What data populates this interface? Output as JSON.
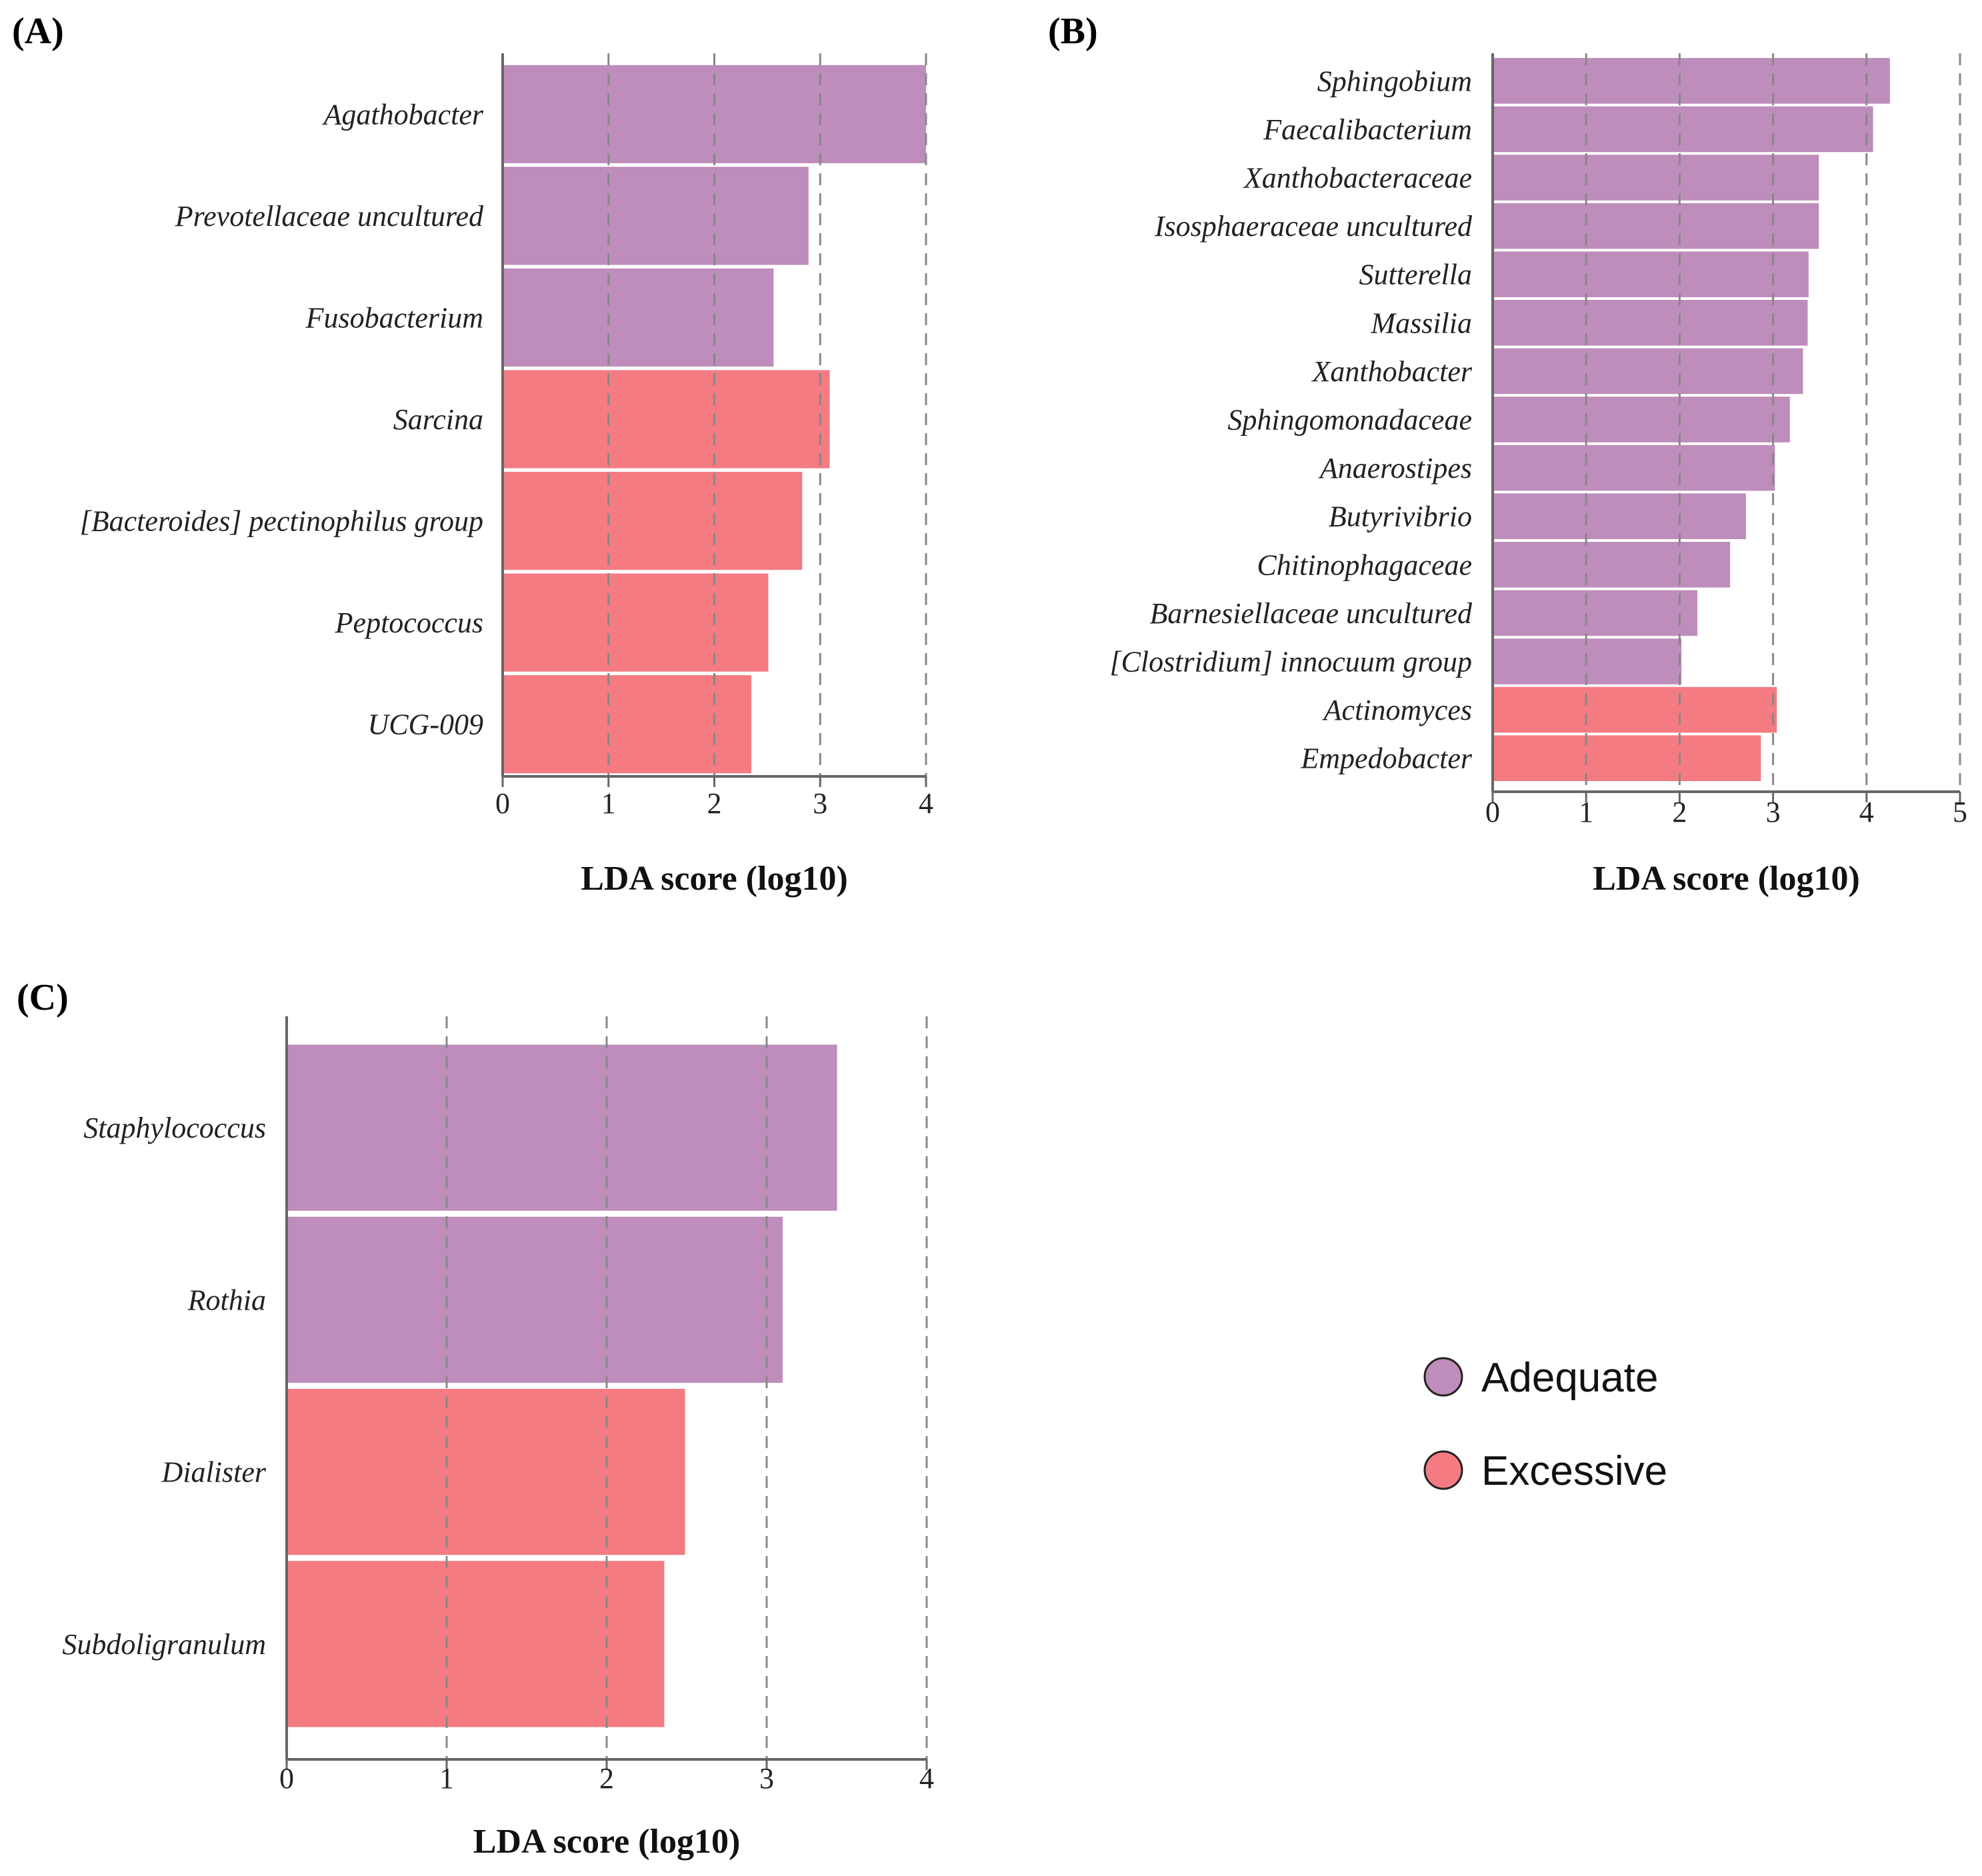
{
  "colors": {
    "adequate": "#be8dbb",
    "excessive": "#f47b82"
  },
  "legend": {
    "items": [
      {
        "label": "Adequate",
        "color": "#be8dbb"
      },
      {
        "label": "Excessive",
        "color": "#f47b82"
      }
    ]
  },
  "chart_data": [
    {
      "panel": "(A)",
      "type": "bar",
      "orientation": "horizontal",
      "xlabel": "LDA score (log10)",
      "xlim": [
        0,
        4
      ],
      "xticks": [
        0,
        1,
        2,
        3,
        4
      ],
      "grid": true,
      "bars": [
        {
          "label": "Agathobacter",
          "value": 4.0,
          "group": "adequate"
        },
        {
          "label": "Prevotellaceae uncultured",
          "value": 2.89,
          "group": "adequate"
        },
        {
          "label": "Fusobacterium",
          "value": 2.56,
          "group": "adequate"
        },
        {
          "label": "Sarcina",
          "value": 3.09,
          "group": "excessive"
        },
        {
          "label": "[Bacteroides] pectinophilus group",
          "value": 2.83,
          "group": "excessive"
        },
        {
          "label": "Peptococcus",
          "value": 2.51,
          "group": "excessive"
        },
        {
          "label": "UCG-009",
          "value": 2.35,
          "group": "excessive"
        }
      ]
    },
    {
      "panel": "(B)",
      "type": "bar",
      "orientation": "horizontal",
      "xlabel": "LDA score (log10)",
      "xlim": [
        0,
        5
      ],
      "xticks": [
        0,
        1,
        2,
        3,
        4,
        5
      ],
      "grid": true,
      "bars": [
        {
          "label": "Sphingobium",
          "value": 4.25,
          "group": "adequate"
        },
        {
          "label": "Faecalibacterium",
          "value": 4.07,
          "group": "adequate"
        },
        {
          "label": "Xanthobacteraceae",
          "value": 3.49,
          "group": "adequate"
        },
        {
          "label": "Isosphaeraceae uncultured",
          "value": 3.49,
          "group": "adequate"
        },
        {
          "label": "Sutterella",
          "value": 3.38,
          "group": "adequate"
        },
        {
          "label": "Massilia",
          "value": 3.37,
          "group": "adequate"
        },
        {
          "label": "Xanthobacter",
          "value": 3.32,
          "group": "adequate"
        },
        {
          "label": "Sphingomonadaceae",
          "value": 3.18,
          "group": "adequate"
        },
        {
          "label": "Anaerostipes",
          "value": 3.02,
          "group": "adequate"
        },
        {
          "label": "Butyrivibrio",
          "value": 2.71,
          "group": "adequate"
        },
        {
          "label": "Chitinophagaceae",
          "value": 2.54,
          "group": "adequate"
        },
        {
          "label": "Barnesiellaceae uncultured",
          "value": 2.19,
          "group": "adequate"
        },
        {
          "label": "[Clostridium] innocuum group",
          "value": 2.02,
          "group": "adequate"
        },
        {
          "label": "Actinomyces",
          "value": 3.04,
          "group": "excessive"
        },
        {
          "label": "Empedobacter",
          "value": 2.87,
          "group": "excessive"
        }
      ]
    },
    {
      "panel": "(C)",
      "type": "bar",
      "orientation": "horizontal",
      "xlabel": "LDA score (log10)",
      "xlim": [
        0,
        4
      ],
      "xticks": [
        0,
        1,
        2,
        3,
        4
      ],
      "grid": true,
      "bars": [
        {
          "label": "Staphylococcus",
          "value": 3.44,
          "group": "adequate"
        },
        {
          "label": "Rothia",
          "value": 3.1,
          "group": "adequate"
        },
        {
          "label": "Dialister",
          "value": 2.49,
          "group": "excessive"
        },
        {
          "label": "Subdoligranulum",
          "value": 2.36,
          "group": "excessive"
        }
      ]
    }
  ]
}
